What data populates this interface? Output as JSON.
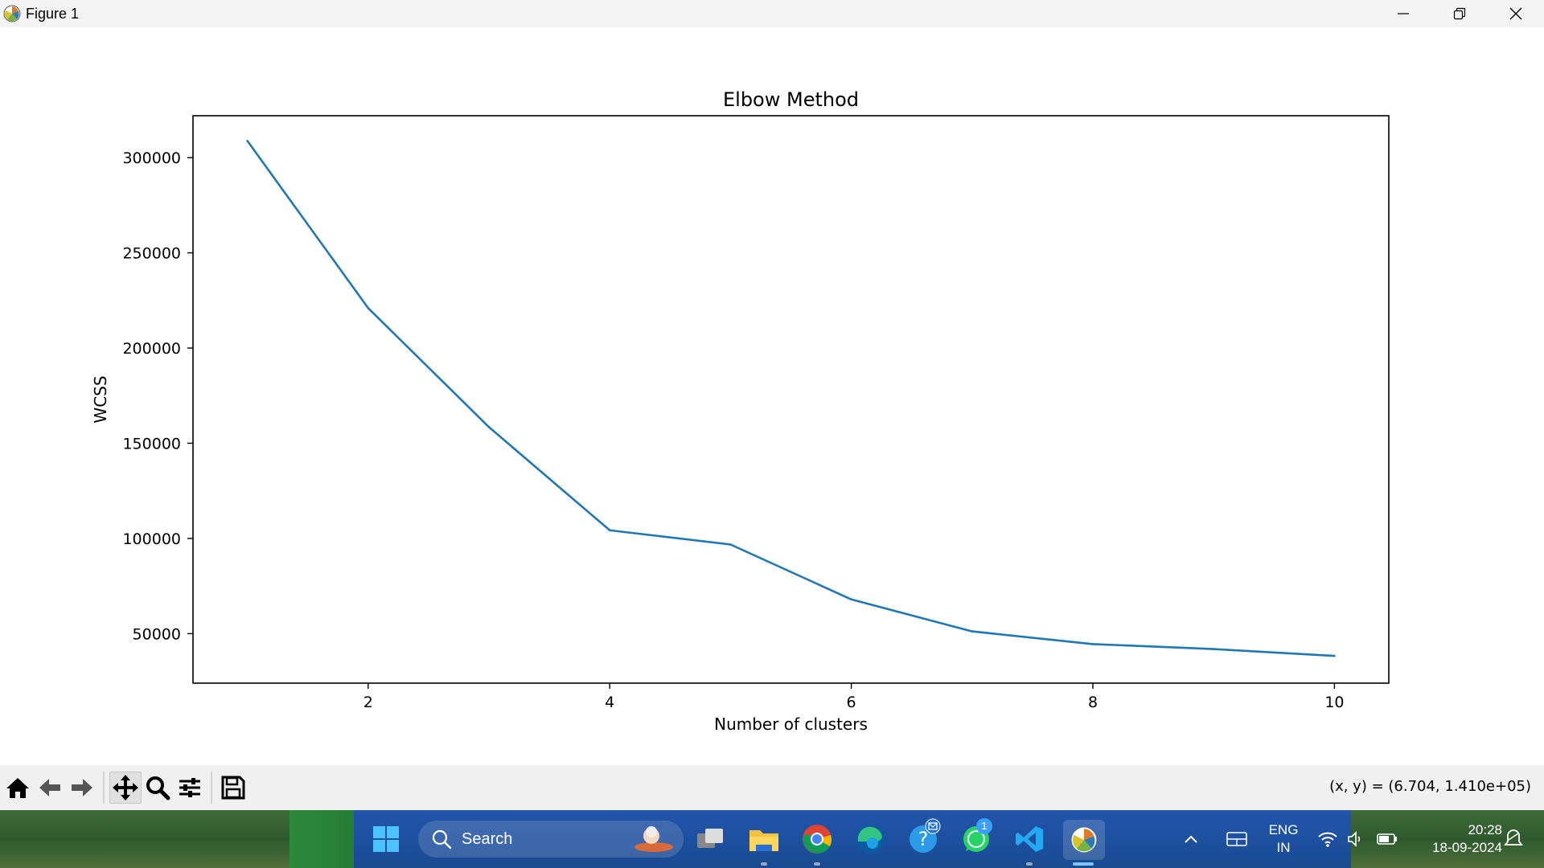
{
  "window": {
    "title": "Figure 1"
  },
  "chart_data": {
    "type": "line",
    "title": "Elbow Method",
    "xlabel": "Number of clusters",
    "ylabel": "WCSS",
    "x": [
      1,
      2,
      3,
      4,
      5,
      6,
      7,
      8,
      9,
      10
    ],
    "series": [
      {
        "values": [
          308800,
          221000,
          158500,
          104300,
          96800,
          68000,
          51200,
          44500,
          41900,
          38300
        ],
        "color": "#1f77b4"
      }
    ],
    "xlim": [
      0.55,
      10.45
    ],
    "ylim": [
      24000,
      322000
    ],
    "xticks": [
      2,
      4,
      6,
      8,
      10
    ],
    "xtick_labels": [
      "2",
      "4",
      "6",
      "8",
      "10"
    ],
    "yticks": [
      50000,
      100000,
      150000,
      200000,
      250000,
      300000
    ],
    "ytick_labels": [
      "50000",
      "100000",
      "150000",
      "200000",
      "250000",
      "300000"
    ],
    "grid": false
  },
  "toolbar": {
    "buttons": [
      "home-icon",
      "back-icon",
      "forward-icon",
      "pan-icon",
      "zoom-icon",
      "configure-subplots-icon",
      "save-icon"
    ],
    "coords": "(x, y) = (6.704, 1.410e+05)"
  },
  "taskbar": {
    "search_placeholder": "Search",
    "lang_top": "ENG",
    "lang_bottom": "IN",
    "time": "20:28",
    "date": "18-09-2024",
    "whatsapp_badge": "1"
  }
}
